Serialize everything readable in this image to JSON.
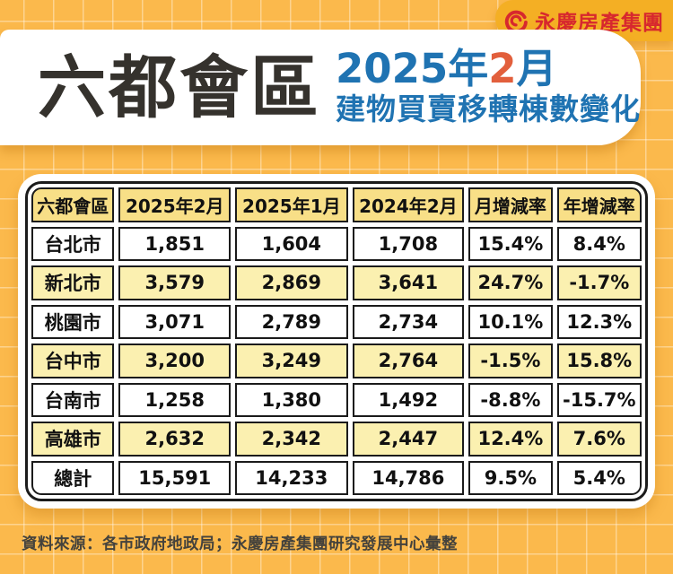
{
  "brand": {
    "logo_text": "永慶房產集團",
    "logo_color": "#D7282E",
    "badge_bg": "#F4AF24"
  },
  "header": {
    "title": "六都會區",
    "subtitle_part1": "2025年",
    "subtitle_part2": "2",
    "subtitle_part3": "月",
    "subtitle_line2": "建物買賣移轉棟數變化"
  },
  "table": {
    "headers": [
      "六都會區",
      "2025年2月",
      "2025年1月",
      "2024年2月",
      "月增減率",
      "年增減率"
    ],
    "rows": [
      {
        "label": "台北市",
        "values": [
          "1,851",
          "1,604",
          "1,708",
          "15.4%",
          "8.4%"
        ]
      },
      {
        "label": "新北市",
        "values": [
          "3,579",
          "2,869",
          "3,641",
          "24.7%",
          "-1.7%"
        ]
      },
      {
        "label": "桃園市",
        "values": [
          "3,071",
          "2,789",
          "2,734",
          "10.1%",
          "12.3%"
        ]
      },
      {
        "label": "台中市",
        "values": [
          "3,200",
          "3,249",
          "2,764",
          "-1.5%",
          "15.8%"
        ]
      },
      {
        "label": "台南市",
        "values": [
          "1,258",
          "1,380",
          "1,492",
          "-8.8%",
          "-15.7%"
        ]
      },
      {
        "label": "高雄市",
        "values": [
          "2,632",
          "2,342",
          "2,447",
          "12.4%",
          "7.6%"
        ]
      },
      {
        "label": "總計",
        "values": [
          "15,591",
          "14,233",
          "14,786",
          "9.5%",
          "5.4%"
        ]
      }
    ]
  },
  "source": {
    "text": "資料來源：各市政府地政局；永慶房產集團研究發展中心彙整"
  },
  "colors": {
    "background": "#FBB94C",
    "badge_yellow": "#F4AF24",
    "header_cell_yellow": "#F8DF87",
    "stripe_cell_yellow": "#FBF0B0",
    "table_border_black": "#1B1B1B",
    "title_charcoal": "#35322D",
    "subtitle_blue": "#1F73B2",
    "accent_orange": "#E25F3C",
    "logo_red": "#D7282E"
  },
  "chart_data": {
    "type": "table",
    "title": "六都會區 2025年2月 建物買賣移轉棟數變化",
    "columns": [
      "六都會區",
      "2025年2月",
      "2025年1月",
      "2024年2月",
      "月增減率",
      "年增減率"
    ],
    "rows": [
      [
        "台北市",
        "1,851",
        "1,604",
        "1,708",
        "15.4%",
        "8.4%"
      ],
      [
        "新北市",
        "3,579",
        "2,869",
        "3,641",
        "24.7%",
        "-1.7%"
      ],
      [
        "桃園市",
        "3,071",
        "2,789",
        "2,734",
        "10.1%",
        "12.3%"
      ],
      [
        "台中市",
        "3,200",
        "3,249",
        "2,764",
        "-1.5%",
        "15.8%"
      ],
      [
        "台南市",
        "1,258",
        "1,380",
        "1,492",
        "-8.8%",
        "-15.7%"
      ],
      [
        "高雄市",
        "2,632",
        "2,342",
        "2,447",
        "12.4%",
        "7.6%"
      ],
      [
        "總計",
        "15,591",
        "14,233",
        "14,786",
        "9.5%",
        "5.4%"
      ]
    ],
    "source_note": "資料來源：各市政府地政局；永慶房產集團研究發展中心彙整"
  }
}
